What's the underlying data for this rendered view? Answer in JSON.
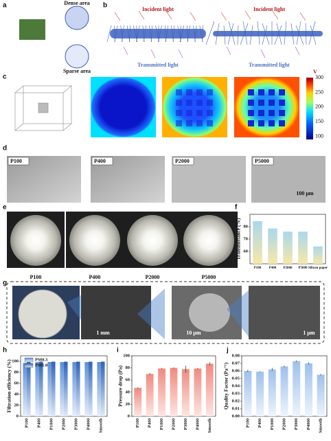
{
  "panel_labels": [
    "a",
    "b",
    "c",
    "d",
    "e",
    "f",
    "g",
    "h",
    "i",
    "j"
  ],
  "a": {
    "dense": "Dense area",
    "sparse": "Sparse area"
  },
  "b": {
    "incident": [
      "Incident light",
      "Incident light"
    ],
    "transmitted": [
      "Transmitted light",
      "Transmitted light"
    ]
  },
  "c": {
    "unit": "V",
    "colorbar_ticks": [
      300,
      250,
      200,
      150,
      100
    ],
    "colorbar_range": [
      90,
      300
    ]
  },
  "d": {
    "samples": [
      "P100",
      "P400",
      "P2000",
      "P5000"
    ],
    "scale": "100 μm"
  },
  "e": {
    "samples": [
      "P100",
      "P400",
      "P2000",
      "P5000"
    ]
  },
  "g": {
    "scales": [
      "1 mm",
      "10 μm",
      "1 μm"
    ]
  },
  "chart_data": [
    {
      "type": "bar",
      "ylabel": "Transmittance (%)",
      "categories": [
        "P100",
        "P400",
        "P2000",
        "P5000",
        "Silicon paper"
      ],
      "values": [
        84.5,
        78.5,
        76,
        76,
        64
      ],
      "colors": [
        "#a9d8ee",
        "#f7e7a6"
      ],
      "ylim": [
        50,
        90
      ],
      "yticks": [
        60,
        70,
        80
      ]
    },
    {
      "type": "bar",
      "ylabel": "Filtration efficiency (%)",
      "categories": [
        "P100",
        "P400",
        "P1000",
        "P2000",
        "P3000",
        "P4000",
        "Smooth"
      ],
      "series": [
        {
          "name": "PM0.3",
          "colors": [
            "#5b8fd6",
            "#e6eefa"
          ],
          "values": [
            97,
            98.5,
            98.8,
            98.6,
            98.7,
            98.6,
            98.7
          ]
        },
        {
          "name": "PM1.0",
          "colors": [
            "#2f63b8",
            "#dfe9f8"
          ],
          "values": [
            98.6,
            99.3,
            99.4,
            99.3,
            99.4,
            99.3,
            99.4
          ]
        }
      ],
      "ylim": [
        0,
        110
      ],
      "yticks": [
        0,
        20,
        40,
        60,
        80,
        100
      ]
    },
    {
      "type": "bar",
      "ylabel": "Pressure drop (Pa)",
      "categories": [
        "P100",
        "P400",
        "P1000",
        "P2000",
        "P3000",
        "P4000",
        "Smooth"
      ],
      "values": [
        47,
        70,
        79,
        80,
        78,
        79,
        87
      ],
      "errors": [
        1,
        1.5,
        1,
        1,
        6,
        1,
        2.5
      ],
      "colors": [
        "#f08a80",
        "#fde6e2"
      ],
      "ylim": [
        0,
        100
      ],
      "yticks": [
        0,
        20,
        40,
        60,
        80,
        100
      ]
    },
    {
      "type": "bar",
      "ylabel": "Quality Factor (Pa⁻¹)",
      "categories": [
        "P100",
        "P400",
        "P1000",
        "P2000",
        "P3000",
        "P4000",
        "Smooth"
      ],
      "values": [
        0.06,
        0.059,
        0.062,
        0.066,
        0.073,
        0.07,
        0.055
      ],
      "errors": [
        0.0015,
        0.0005,
        0.002,
        0.001,
        0.001,
        0.0015,
        0.001
      ],
      "colors": [
        "#9dc0ec",
        "#eef4fc"
      ],
      "ylim": [
        0,
        0.08
      ],
      "yticks": [
        {
          "value": 0,
          "label": "0.00"
        },
        {
          "value": 0.01,
          "label": "0.01"
        },
        {
          "value": 0.02,
          "label": "0.02"
        },
        {
          "value": 0.03,
          "label": "0.03"
        },
        {
          "value": 0.04,
          "label": "0.04"
        },
        {
          "value": 0.05,
          "label": "0.05"
        },
        {
          "value": 0.06,
          "label": "0.06"
        },
        {
          "value": 0.07,
          "label": "0.07"
        },
        {
          "value": 0.08,
          "label": "0.08"
        }
      ]
    }
  ]
}
